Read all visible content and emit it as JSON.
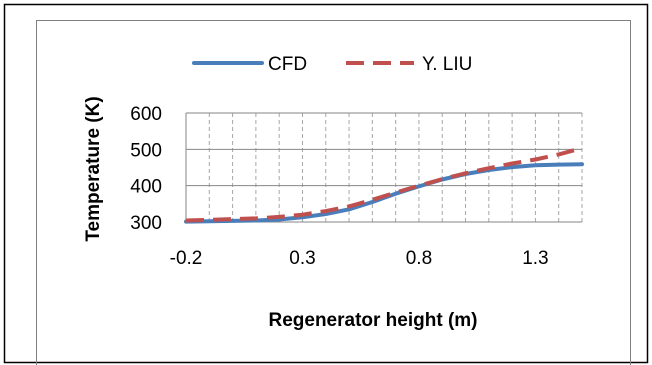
{
  "chart_data": {
    "type": "line",
    "xlabel": "Regenerator height (m)",
    "ylabel": "Temperature (K)",
    "xlim": [
      -0.2,
      1.5
    ],
    "ylim": [
      300,
      600
    ],
    "x_ticks": [
      -0.2,
      0.3,
      0.8,
      1.3
    ],
    "x_tick_labels": [
      "-0.2",
      "0.3",
      "0.8",
      "1.3"
    ],
    "y_ticks": [
      300,
      400,
      500,
      600
    ],
    "y_tick_labels": [
      "300",
      "400",
      "500",
      "600"
    ],
    "x_minor_step": 0.1,
    "grid": true,
    "legend_position": "top",
    "series": [
      {
        "name": "CFD",
        "color": "#4a7ebb",
        "style": "solid",
        "x": [
          -0.2,
          -0.1,
          0.0,
          0.1,
          0.2,
          0.3,
          0.4,
          0.5,
          0.6,
          0.7,
          0.8,
          0.9,
          1.0,
          1.1,
          1.2,
          1.3,
          1.4,
          1.5
        ],
        "y": [
          301,
          302,
          303,
          304,
          307,
          313,
          322,
          335,
          355,
          378,
          398,
          417,
          432,
          443,
          451,
          456,
          458,
          459
        ]
      },
      {
        "name": "Y. LIU",
        "color": "#c0504d",
        "style": "dashed",
        "x": [
          -0.2,
          -0.1,
          0.0,
          0.1,
          0.2,
          0.3,
          0.4,
          0.5,
          0.6,
          0.7,
          0.8,
          0.9,
          1.0,
          1.1,
          1.2,
          1.3,
          1.4,
          1.5
        ],
        "y": [
          304,
          306,
          308,
          310,
          314,
          320,
          330,
          343,
          361,
          381,
          400,
          418,
          434,
          448,
          461,
          472,
          486,
          503
        ]
      }
    ]
  }
}
